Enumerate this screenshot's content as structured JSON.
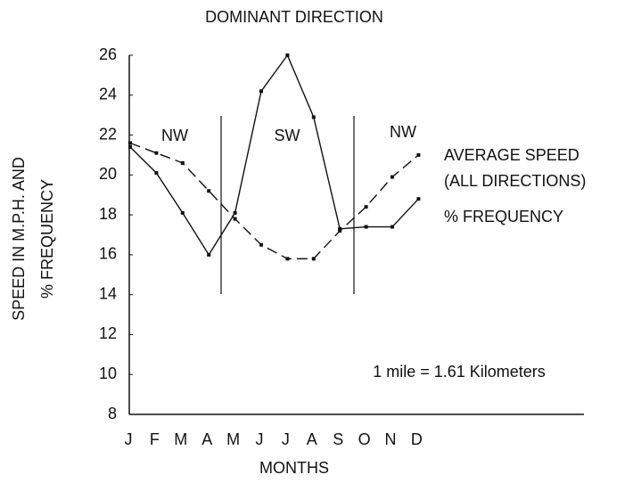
{
  "chart_data": {
    "type": "line",
    "title": "DOMINANT DIRECTION",
    "x_label": "MONTHS",
    "y_label": [
      "SPEED IN M.P.H. AND",
      "% FREQUENCY"
    ],
    "categories": [
      "J",
      "F",
      "M",
      "A",
      "M",
      "J",
      "J",
      "A",
      "S",
      "O",
      "N",
      "D"
    ],
    "series": [
      {
        "name": "AVERAGE SPEED\n(ALL DIRECTIONS)",
        "color": "#111111",
        "dash": true,
        "values": [
          21.6,
          21.1,
          20.6,
          19.2,
          17.8,
          16.5,
          15.8,
          15.8,
          17.2,
          18.4,
          19.9,
          21.0
        ]
      },
      {
        "name": "% FREQUENCY",
        "color": "#111111",
        "dash": false,
        "values": [
          21.4,
          20.1,
          18.1,
          16.0,
          18.1,
          24.2,
          26.0,
          22.9,
          17.3,
          17.4,
          17.4,
          18.8
        ]
      }
    ],
    "ylim": [
      8,
      26
    ],
    "yticks": [
      8,
      10,
      12,
      14,
      16,
      18,
      20,
      22,
      24,
      26
    ],
    "grid": false,
    "annotations": [
      "NW",
      "SW",
      "NW",
      "1 mile = 1.61 Kilometers"
    ]
  }
}
